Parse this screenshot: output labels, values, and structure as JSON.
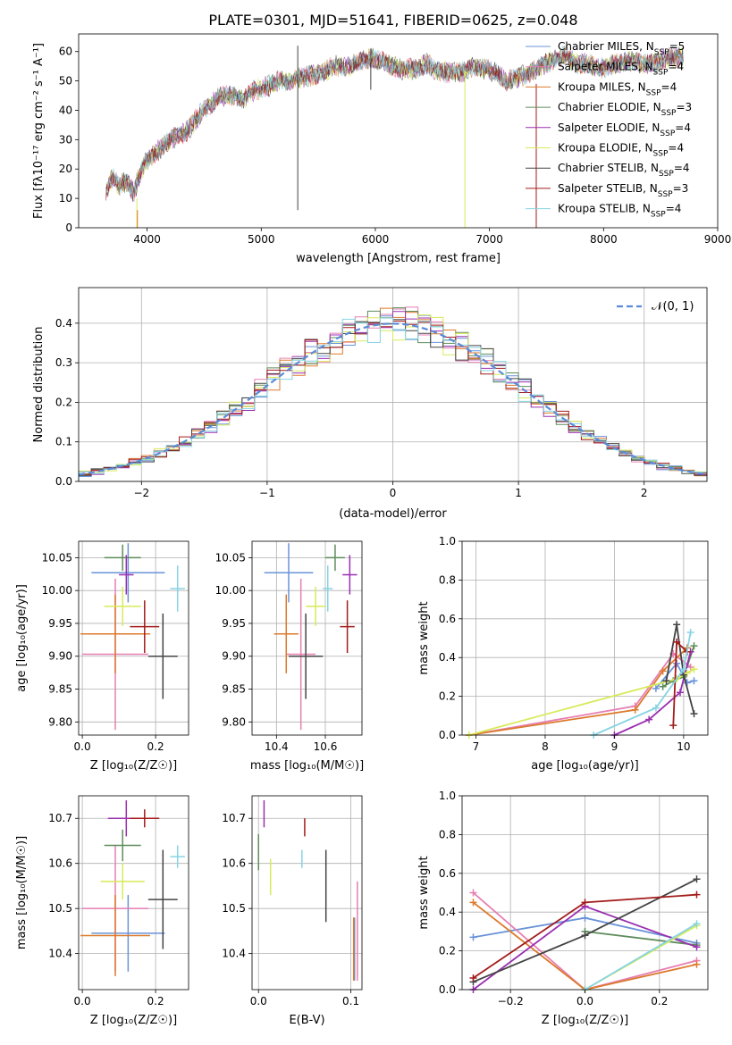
{
  "figure": {
    "title": "PLATE=0301, MJD=51641, FIBERID=0625, z=0.048"
  },
  "colors": {
    "Chabrier MILES": "#6a93d8",
    "Salpeter MILES": "#e67fb3",
    "Kroupa MILES": "#dd7a2c",
    "Chabrier ELODIE": "#5e8c5a",
    "Salpeter ELODIE": "#9a2fb0",
    "Kroupa ELODIE": "#d8ea5a",
    "Chabrier STELIB": "#444444",
    "Salpeter STELIB": "#a31b1b",
    "Kroupa STELIB": "#86d4e3",
    "gaussian": "#5b8bd8"
  },
  "chart_data": [
    {
      "type": "line",
      "panel": "spectrum",
      "title": "PLATE=0301, MJD=51641, FIBERID=0625, z=0.048",
      "xlabel": "wavelength [Angstrom, rest frame]",
      "ylabel": "Flux [fλ10⁻¹⁷ erg cm⁻² s⁻¹ A⁻¹]",
      "xlim": [
        3400,
        9000
      ],
      "ylim": [
        0,
        66
      ],
      "xticks": [
        "4000",
        "5000",
        "6000",
        "7000",
        "8000",
        "9000"
      ],
      "yticks": [
        "0",
        "10",
        "20",
        "30",
        "40",
        "50",
        "60"
      ],
      "legend_position": "top-right",
      "legend": [
        {
          "label": "Chabrier MILES, N",
          "sub": "SSP",
          "suffix": "=5"
        },
        {
          "label": "Salpeter MILES, N",
          "sub": "SSP",
          "suffix": "=4"
        },
        {
          "label": "Kroupa MILES, N",
          "sub": "SSP",
          "suffix": "=4"
        },
        {
          "label": "Chabrier ELODIE, N",
          "sub": "SSP",
          "suffix": "=3"
        },
        {
          "label": "Salpeter ELODIE, N",
          "sub": "SSP",
          "suffix": "=4"
        },
        {
          "label": "Kroupa ELODIE, N",
          "sub": "SSP",
          "suffix": "=4"
        },
        {
          "label": "Chabrier STELIB, N",
          "sub": "SSP",
          "suffix": "=4"
        },
        {
          "label": "Salpeter STELIB, N",
          "sub": "SSP",
          "suffix": "=3"
        },
        {
          "label": "Kroupa STELIB, N",
          "sub": "SSP",
          "suffix": "=4"
        }
      ],
      "continuum": [
        [
          3640,
          13
        ],
        [
          3700,
          17
        ],
        [
          3760,
          14
        ],
        [
          3820,
          16
        ],
        [
          3880,
          12
        ],
        [
          3930,
          17
        ],
        [
          3980,
          22
        ],
        [
          4050,
          25
        ],
        [
          4150,
          28
        ],
        [
          4250,
          31
        ],
        [
          4350,
          33
        ],
        [
          4450,
          38
        ],
        [
          4550,
          42
        ],
        [
          4650,
          45
        ],
        [
          4750,
          45
        ],
        [
          4850,
          44
        ],
        [
          4950,
          47
        ],
        [
          5050,
          48
        ],
        [
          5150,
          50
        ],
        [
          5250,
          50
        ],
        [
          5350,
          51
        ],
        [
          5450,
          52
        ],
        [
          5550,
          53
        ],
        [
          5650,
          55
        ],
        [
          5750,
          55
        ],
        [
          5850,
          56
        ],
        [
          5950,
          58
        ],
        [
          6050,
          57
        ],
        [
          6150,
          55
        ],
        [
          6250,
          54
        ],
        [
          6350,
          54
        ],
        [
          6450,
          56
        ],
        [
          6550,
          53
        ],
        [
          6650,
          53
        ],
        [
          6750,
          53
        ],
        [
          6850,
          55
        ],
        [
          6950,
          54
        ],
        [
          7050,
          53
        ],
        [
          7150,
          50
        ],
        [
          7250,
          51
        ],
        [
          7350,
          53
        ],
        [
          7450,
          55
        ],
        [
          7550,
          57
        ],
        [
          7650,
          59
        ],
        [
          7750,
          56
        ],
        [
          7850,
          56
        ],
        [
          7950,
          54
        ],
        [
          8050,
          55
        ],
        [
          8150,
          56
        ],
        [
          8250,
          57
        ],
        [
          8350,
          56
        ],
        [
          8450,
          56
        ],
        [
          8550,
          58
        ],
        [
          8650,
          58
        ],
        [
          8700,
          58
        ]
      ],
      "spikes": [
        {
          "x": 5320,
          "y0": 6,
          "y1": 62,
          "series": "Chabrier STELIB"
        },
        {
          "x": 5960,
          "y0": 47,
          "y1": 61,
          "series": "Chabrier STELIB"
        },
        {
          "x": 6785,
          "y0": 0,
          "y1": 53,
          "series": "Kroupa ELODIE"
        },
        {
          "x": 7410,
          "y0": 0,
          "y1": 49,
          "series": "Salpeter STELIB"
        },
        {
          "x": 3910,
          "y0": 0,
          "y1": 10,
          "series": "Kroupa ELODIE"
        },
        {
          "x": 3915,
          "y0": 0,
          "y1": 6,
          "series": "Kroupa MILES"
        }
      ]
    },
    {
      "type": "bar",
      "panel": "residuals",
      "xlabel": "(data-model)/error",
      "ylabel": "Normed distribution",
      "xlim": [
        -2.5,
        2.5
      ],
      "ylim": [
        0,
        0.49
      ],
      "grid": true,
      "xticks": [
        "−2",
        "−1",
        "0",
        "1",
        "2"
      ],
      "yticks": [
        "0.0",
        "0.1",
        "0.2",
        "0.3",
        "0.4"
      ],
      "bin_width": 0.1,
      "legend_position": "top-right",
      "legend": [
        {
          "label": "𝒩(0, 1)",
          "series": "gaussian",
          "style": "dashed"
        }
      ]
    },
    {
      "type": "scatter",
      "panel": "age-vs-Z",
      "xlabel": "Z [log₁₀(Z/Z☉)]",
      "ylabel": "age  [log₁₀(age/yr)]",
      "xlim": [
        -0.01,
        0.29
      ],
      "ylim": [
        9.78,
        10.075
      ],
      "grid": true,
      "xticks": [
        "0.0",
        "0.2"
      ],
      "yticks": [
        "9.80",
        "9.85",
        "9.90",
        "9.95",
        "10.00",
        "10.05"
      ],
      "series": [
        {
          "name": "Chabrier MILES",
          "x": 0.125,
          "y": 10.027,
          "xerr": 0.1,
          "yerr": 0.045
        },
        {
          "name": "Salpeter MILES",
          "x": 0.09,
          "y": 9.903,
          "xerr": 0.09,
          "yerr": 0.115
        },
        {
          "name": "Kroupa MILES",
          "x": 0.09,
          "y": 9.934,
          "xerr": 0.095,
          "yerr": 0.06
        },
        {
          "name": "Chabrier ELODIE",
          "x": 0.11,
          "y": 10.05,
          "xerr": 0.05,
          "yerr": 0.02
        },
        {
          "name": "Salpeter ELODIE",
          "x": 0.12,
          "y": 10.024,
          "xerr": 0.02,
          "yerr": 0.03
        },
        {
          "name": "Kroupa ELODIE",
          "x": 0.11,
          "y": 9.976,
          "xerr": 0.05,
          "yerr": 0.03
        },
        {
          "name": "Chabrier STELIB",
          "x": 0.22,
          "y": 9.9,
          "xerr": 0.04,
          "yerr": 0.065
        },
        {
          "name": "Salpeter STELIB",
          "x": 0.17,
          "y": 9.945,
          "xerr": 0.04,
          "yerr": 0.04
        },
        {
          "name": "Kroupa STELIB",
          "x": 0.26,
          "y": 10.003,
          "xerr": 0.02,
          "yerr": 0.035
        }
      ]
    },
    {
      "type": "scatter",
      "panel": "age-vs-mass",
      "xlabel": "mass [log₁₀(M/M☉)]",
      "xlim": [
        10.3,
        10.75
      ],
      "ylim": [
        9.78,
        10.075
      ],
      "grid": true,
      "xticks": [
        "10.4",
        "10.6"
      ],
      "yticks": [
        "9.80",
        "9.85",
        "9.90",
        "9.95",
        "10.00",
        "10.05"
      ],
      "series": [
        {
          "name": "Chabrier MILES",
          "x": 10.45,
          "y": 10.027,
          "xerr": 0.1,
          "yerr": 0.045
        },
        {
          "name": "Salpeter MILES",
          "x": 10.5,
          "y": 9.903,
          "xerr": 0.06,
          "yerr": 0.115
        },
        {
          "name": "Kroupa MILES",
          "x": 10.44,
          "y": 9.934,
          "xerr": 0.05,
          "yerr": 0.06
        },
        {
          "name": "Chabrier ELODIE",
          "x": 10.64,
          "y": 10.05,
          "xerr": 0.04,
          "yerr": 0.02
        },
        {
          "name": "Salpeter ELODIE",
          "x": 10.7,
          "y": 10.024,
          "xerr": 0.03,
          "yerr": 0.03
        },
        {
          "name": "Kroupa ELODIE",
          "x": 10.56,
          "y": 9.976,
          "xerr": 0.04,
          "yerr": 0.03
        },
        {
          "name": "Chabrier STELIB",
          "x": 10.52,
          "y": 9.9,
          "xerr": 0.07,
          "yerr": 0.065
        },
        {
          "name": "Salpeter STELIB",
          "x": 10.69,
          "y": 9.945,
          "xerr": 0.03,
          "yerr": 0.04
        },
        {
          "name": "Kroupa STELIB",
          "x": 10.61,
          "y": 10.003,
          "xerr": 0.02,
          "yerr": 0.035
        }
      ]
    },
    {
      "type": "line",
      "panel": "weight-vs-age",
      "xlabel": "age  [log₁₀(age/yr)]",
      "ylabel": "mass weight",
      "xlim": [
        6.8,
        10.35
      ],
      "ylim": [
        0,
        1.0
      ],
      "grid": true,
      "xticks": [
        "7",
        "8",
        "9",
        "10"
      ],
      "yticks": [
        "0.0",
        "0.2",
        "0.4",
        "0.6",
        "0.8",
        "1.0"
      ],
      "series": [
        {
          "name": "Chabrier MILES",
          "x": [
            9.6,
            9.9,
            10.05,
            10.15
          ],
          "y": [
            0.24,
            0.37,
            0.27,
            0.28
          ]
        },
        {
          "name": "Salpeter MILES",
          "x": [
            6.9,
            9.3,
            9.85,
            10.1
          ],
          "y": [
            0.0,
            0.15,
            0.42,
            0.35
          ]
        },
        {
          "name": "Kroupa MILES",
          "x": [
            6.9,
            9.3,
            9.7,
            10.05
          ],
          "y": [
            0.0,
            0.13,
            0.33,
            0.45
          ]
        },
        {
          "name": "Chabrier ELODIE",
          "x": [
            9.7,
            9.85,
            10.0,
            10.15
          ],
          "y": [
            0.25,
            0.28,
            0.3,
            0.46
          ]
        },
        {
          "name": "Salpeter ELODIE",
          "x": [
            9.0,
            9.5,
            9.95,
            10.1
          ],
          "y": [
            0.0,
            0.08,
            0.22,
            0.43
          ]
        },
        {
          "name": "Kroupa ELODIE",
          "x": [
            6.9,
            9.9,
            10.05,
            10.15
          ],
          "y": [
            0.0,
            0.29,
            0.32,
            0.34
          ]
        },
        {
          "name": "Chabrier STELIB",
          "x": [
            9.75,
            9.9,
            10.0,
            10.15
          ],
          "y": [
            0.28,
            0.57,
            0.31,
            0.11
          ]
        },
        {
          "name": "Salpeter STELIB",
          "x": [
            9.85,
            9.9,
            10.05
          ],
          "y": [
            0.05,
            0.48,
            0.43
          ]
        },
        {
          "name": "Kroupa STELIB",
          "x": [
            8.7,
            9.6,
            10.0,
            10.1
          ],
          "y": [
            0.0,
            0.14,
            0.34,
            0.53
          ]
        }
      ]
    },
    {
      "type": "scatter",
      "panel": "mass-vs-Z",
      "xlabel": "Z [log₁₀(Z/Z☉)]",
      "ylabel": "mass [log₁₀(M/M☉)]",
      "xlim": [
        -0.01,
        0.29
      ],
      "ylim": [
        10.32,
        10.75
      ],
      "grid": true,
      "xticks": [
        "0.0",
        "0.2"
      ],
      "yticks": [
        "10.4",
        "10.5",
        "10.6",
        "10.7"
      ],
      "series": [
        {
          "name": "Chabrier MILES",
          "x": 0.125,
          "y": 10.445,
          "xerr": 0.1,
          "yerr": 0.085
        },
        {
          "name": "Salpeter MILES",
          "x": 0.09,
          "y": 10.5,
          "xerr": 0.09,
          "yerr": 0.14
        },
        {
          "name": "Kroupa MILES",
          "x": 0.09,
          "y": 10.44,
          "xerr": 0.095,
          "yerr": 0.09
        },
        {
          "name": "Chabrier ELODIE",
          "x": 0.11,
          "y": 10.64,
          "xerr": 0.05,
          "yerr": 0.035
        },
        {
          "name": "Salpeter ELODIE",
          "x": 0.12,
          "y": 10.7,
          "xerr": 0.05,
          "yerr": 0.04
        },
        {
          "name": "Kroupa ELODIE",
          "x": 0.11,
          "y": 10.56,
          "xerr": 0.06,
          "yerr": 0.04
        },
        {
          "name": "Chabrier STELIB",
          "x": 0.22,
          "y": 10.52,
          "xerr": 0.04,
          "yerr": 0.11
        },
        {
          "name": "Salpeter STELIB",
          "x": 0.17,
          "y": 10.7,
          "xerr": 0.04,
          "yerr": 0.02
        },
        {
          "name": "Kroupa STELIB",
          "x": 0.26,
          "y": 10.615,
          "xerr": 0.02,
          "yerr": 0.025
        }
      ]
    },
    {
      "type": "scatter",
      "panel": "mass-vs-EBV",
      "xlabel": "E(B-V)",
      "xlim": [
        -0.007,
        0.112
      ],
      "ylim": [
        10.32,
        10.75
      ],
      "grid": true,
      "xticks": [
        "0.0",
        "0.1"
      ],
      "yticks": [
        "10.4",
        "10.5",
        "10.6",
        "10.7"
      ],
      "series": [
        {
          "name": "Chabrier MILES",
          "x": 0.104,
          "y": 10.41,
          "xerr": 0,
          "yerr": 0.07
        },
        {
          "name": "Salpeter MILES",
          "x": 0.107,
          "y": 10.45,
          "xerr": 0,
          "yerr": 0.11
        },
        {
          "name": "Kroupa MILES",
          "x": 0.103,
          "y": 10.41,
          "xerr": 0,
          "yerr": 0.07
        },
        {
          "name": "Chabrier ELODIE",
          "x": 0.0,
          "y": 10.625,
          "xerr": 0,
          "yerr": 0.04
        },
        {
          "name": "Salpeter ELODIE",
          "x": 0.006,
          "y": 10.71,
          "xerr": 0,
          "yerr": 0.03
        },
        {
          "name": "Kroupa ELODIE",
          "x": 0.013,
          "y": 10.57,
          "xerr": 0,
          "yerr": 0.04
        },
        {
          "name": "Chabrier STELIB",
          "x": 0.073,
          "y": 10.55,
          "xerr": 0,
          "yerr": 0.08
        },
        {
          "name": "Salpeter STELIB",
          "x": 0.05,
          "y": 10.68,
          "xerr": 0,
          "yerr": 0.02
        },
        {
          "name": "Kroupa STELIB",
          "x": 0.047,
          "y": 10.61,
          "xerr": 0,
          "yerr": 0.02
        }
      ]
    },
    {
      "type": "line",
      "panel": "weight-vs-Z",
      "xlabel": "Z [log₁₀(Z/Z☉)]",
      "ylabel": "mass weight",
      "xlim": [
        -0.33,
        0.33
      ],
      "ylim": [
        0,
        1.0
      ],
      "grid": true,
      "xticks": [
        "−0.2",
        "0.0",
        "0.2"
      ],
      "yticks": [
        "0.0",
        "0.2",
        "0.4",
        "0.6",
        "0.8",
        "1.0"
      ],
      "series": [
        {
          "name": "Chabrier MILES",
          "x": [
            -0.3,
            0.0,
            0.3
          ],
          "y": [
            0.27,
            0.37,
            0.24
          ]
        },
        {
          "name": "Salpeter MILES",
          "x": [
            -0.3,
            0.0,
            0.3
          ],
          "y": [
            0.5,
            0.0,
            0.15
          ]
        },
        {
          "name": "Kroupa MILES",
          "x": [
            -0.3,
            0.0,
            0.3
          ],
          "y": [
            0.45,
            0.0,
            0.13
          ]
        },
        {
          "name": "Chabrier ELODIE",
          "x": [
            0.0,
            0.3
          ],
          "y": [
            0.3,
            0.23
          ]
        },
        {
          "name": "Salpeter ELODIE",
          "x": [
            -0.3,
            0.0,
            0.3
          ],
          "y": [
            0.0,
            0.43,
            0.22
          ]
        },
        {
          "name": "Kroupa ELODIE",
          "x": [
            0.0,
            0.3
          ],
          "y": [
            0.0,
            0.33
          ]
        },
        {
          "name": "Chabrier STELIB",
          "x": [
            -0.3,
            0.0,
            0.3
          ],
          "y": [
            0.04,
            0.28,
            0.57
          ]
        },
        {
          "name": "Salpeter STELIB",
          "x": [
            -0.3,
            0.0,
            0.3
          ],
          "y": [
            0.06,
            0.45,
            0.49
          ]
        },
        {
          "name": "Kroupa STELIB",
          "x": [
            0.0,
            0.3
          ],
          "y": [
            0.0,
            0.34
          ]
        }
      ]
    }
  ]
}
